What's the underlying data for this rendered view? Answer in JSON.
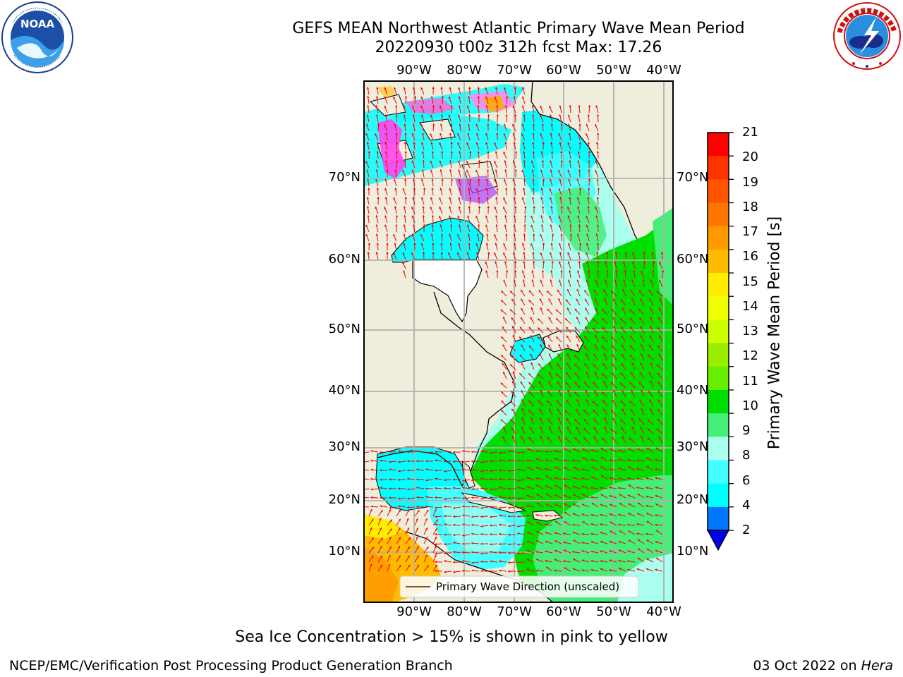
{
  "title": {
    "line1": "GEFS MEAN Northwest Atlantic Primary Wave Mean Period",
    "line2": "20220930 t00z 312h fcst   Max: 17.26"
  },
  "logos": {
    "left": {
      "name": "noaa-logo",
      "text": "NOAA",
      "ring": "NATIONAL OCEANIC AND ATMOSPHERIC ADMINISTRATION · U.S. DEPARTMENT OF COMMERCE"
    },
    "right": {
      "name": "nws-logo",
      "ring": "NATIONAL WEATHER SERVICE"
    }
  },
  "map": {
    "lon_labels": [
      "90°W",
      "80°W",
      "70°W",
      "60°W",
      "50°W",
      "40°W"
    ],
    "lat_labels": [
      "70°N",
      "60°N",
      "50°N",
      "40°N",
      "30°N",
      "20°N",
      "10°N"
    ],
    "legend": "Primary Wave Direction (unscaled)",
    "colors": {
      "land": "#efeddb",
      "frame": "#000000",
      "grid": "#b0b0b0",
      "arrows": "#ff0000"
    }
  },
  "colorbar": {
    "label": "Primary Wave Mean Period [s]",
    "ticks": [
      "21",
      "20",
      "19",
      "18",
      "17",
      "16",
      "15",
      "14",
      "13",
      "12",
      "11",
      "10",
      "9",
      "8",
      "6",
      "4",
      "2"
    ],
    "colors_top_to_bottom": [
      "#ff0000",
      "#ff3300",
      "#ff5500",
      "#ff7700",
      "#ff9900",
      "#ffbb00",
      "#ffee00",
      "#eeff00",
      "#ccff00",
      "#99ee00",
      "#66ee00",
      "#00dd00",
      "#44ee77",
      "#aaffee",
      "#44ffff",
      "#00ffff",
      "#0077ff"
    ],
    "under_color": "#0000ee"
  },
  "caption": "Sea Ice Concentration > 15% is shown in pink to yellow",
  "footer": {
    "left": "NCEP/EMC/Verification Post Processing Product Generation Branch",
    "date": "03 Oct 2022 on ",
    "machine": "Hera"
  }
}
